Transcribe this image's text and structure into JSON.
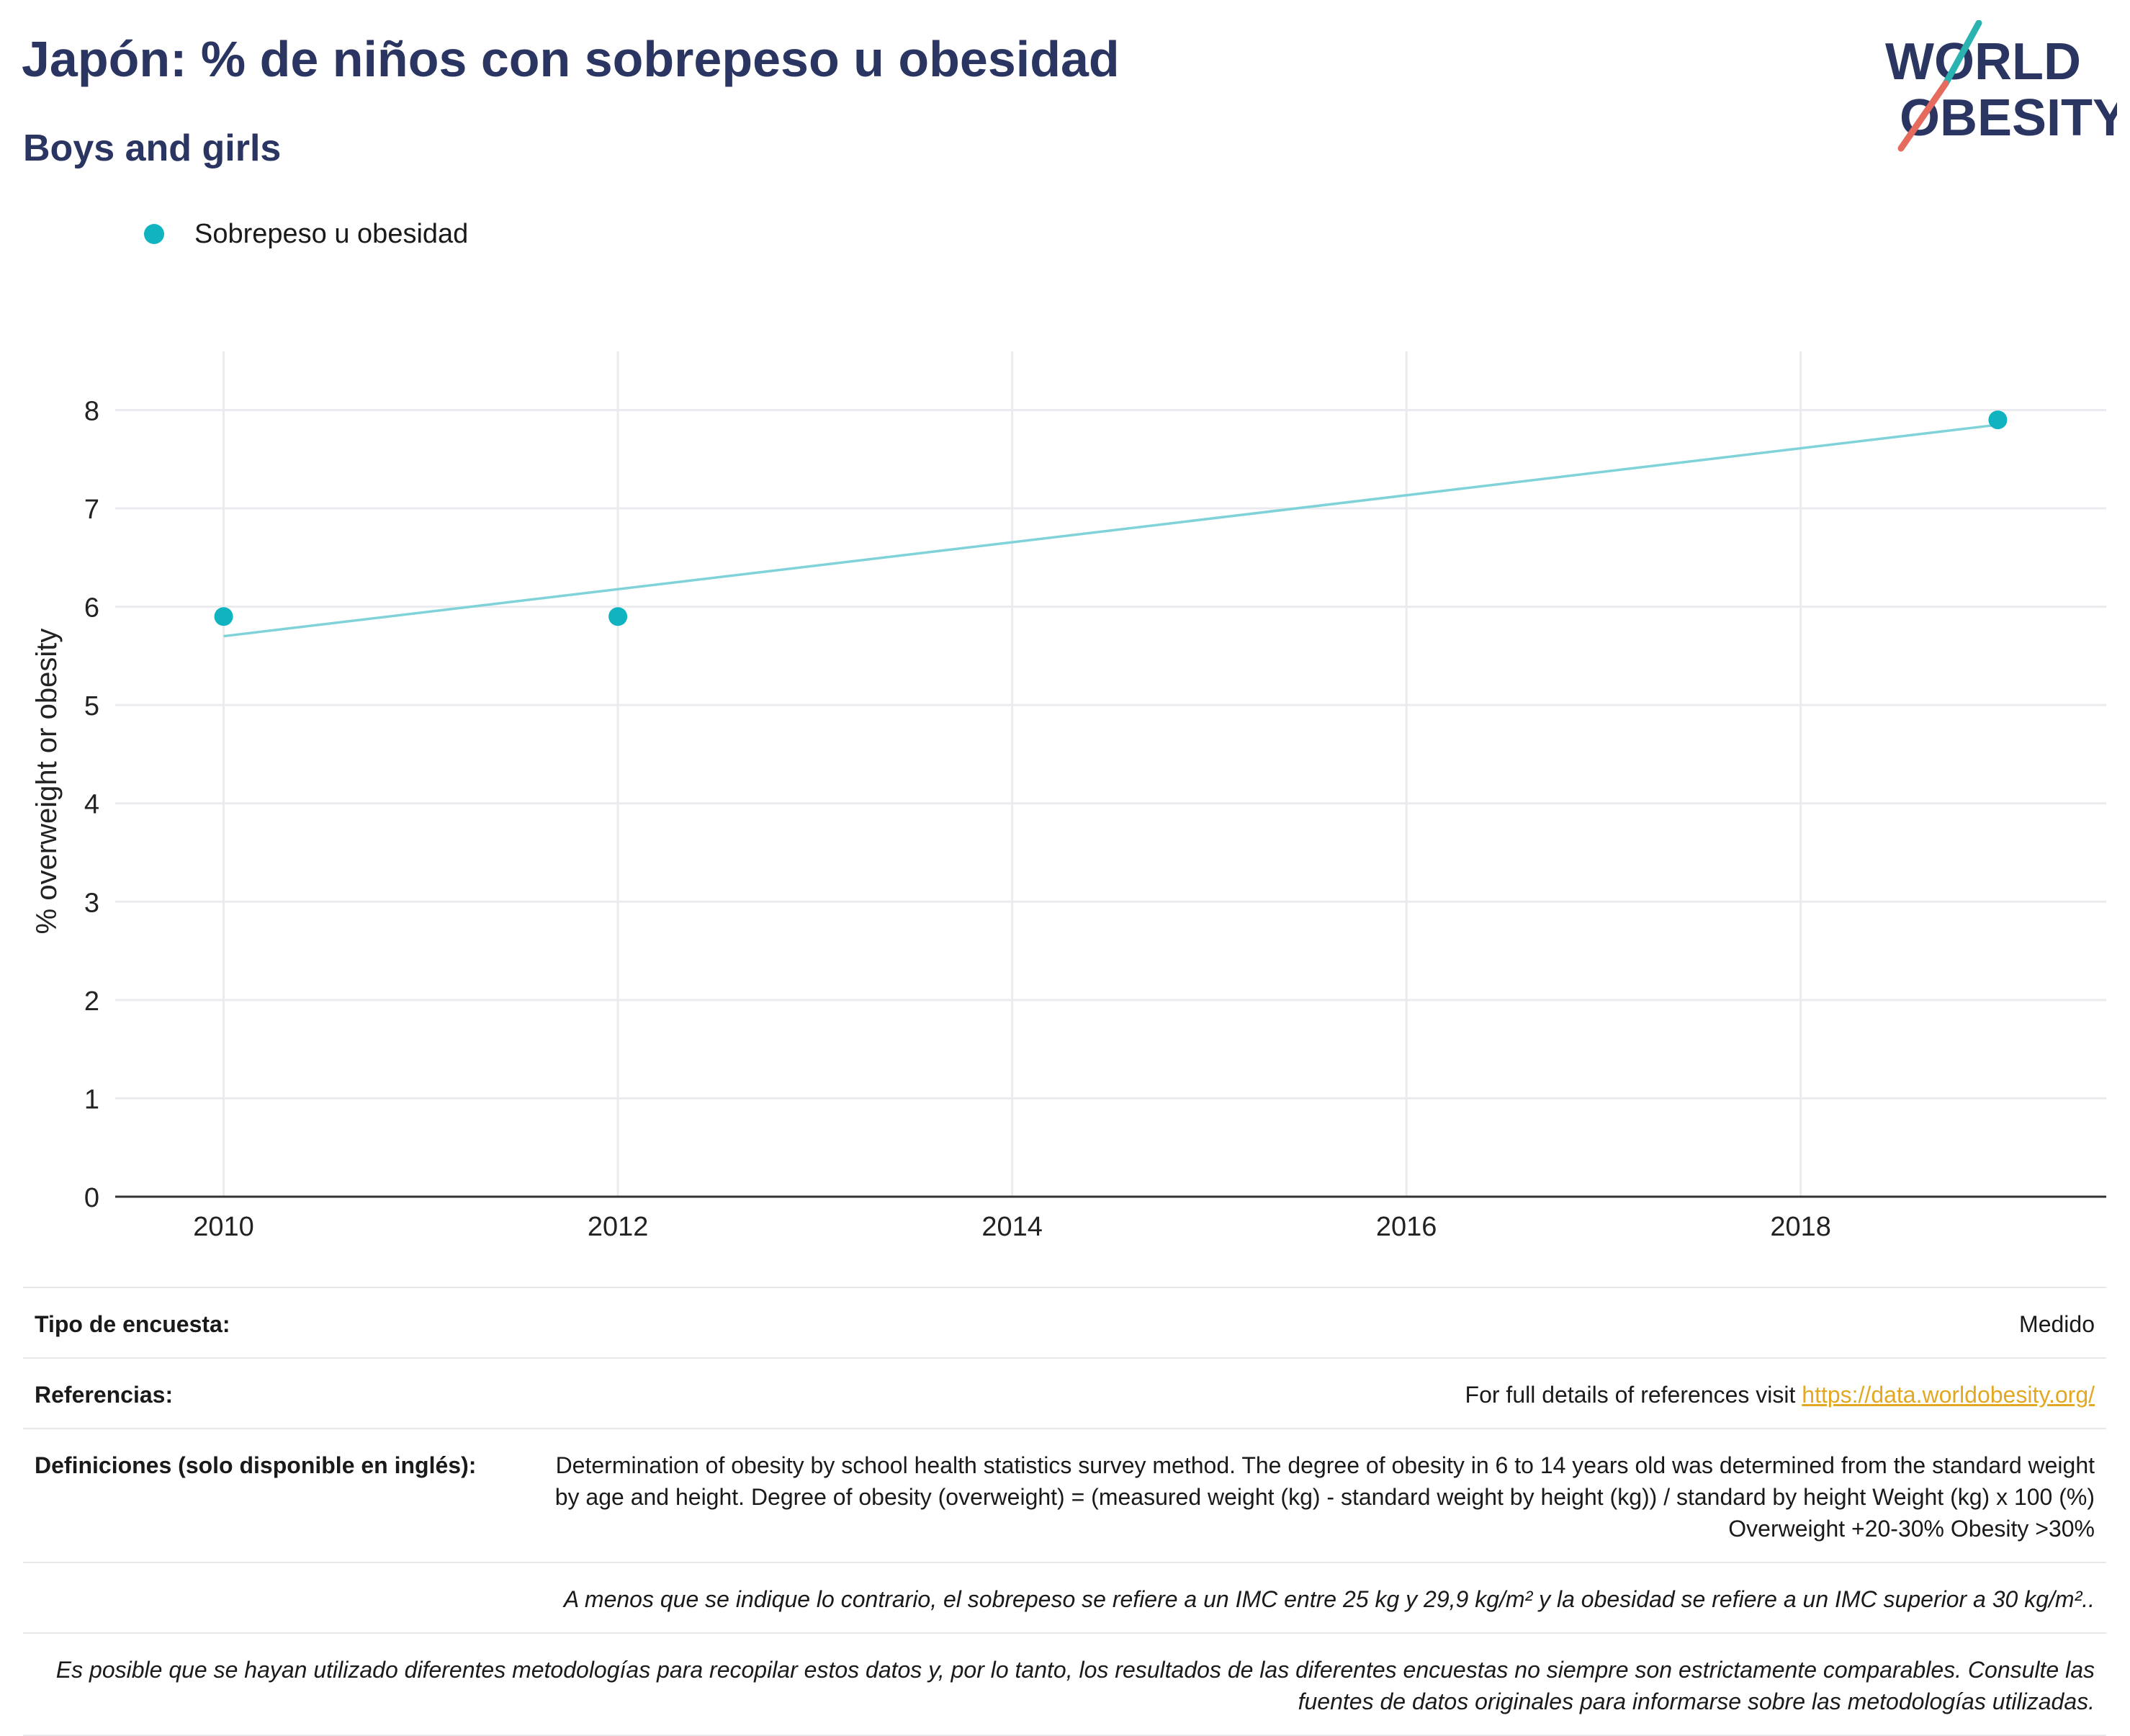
{
  "header": {
    "title": "Japón: % de niños con sobrepeso u obesidad",
    "subtitle": "Boys and girls"
  },
  "logo": {
    "line1": "WORLD",
    "line2": "OBESITY",
    "text_color": "#2a3561",
    "accent_teal": "#2bb3b1",
    "accent_red": "#e46b5d"
  },
  "legend": {
    "label": "Sobrepeso u obesidad",
    "color": "#10b4c1"
  },
  "chart_data": {
    "type": "scatter",
    "series": [
      {
        "name": "Sobrepeso u obesidad",
        "color": "#10b4c1",
        "x": [
          2010,
          2012,
          2019
        ],
        "y": [
          5.9,
          5.9,
          7.9
        ]
      }
    ],
    "trendline": {
      "color": "#7fd3d8",
      "x": [
        2010,
        2019
      ],
      "y": [
        5.7,
        7.85
      ]
    },
    "xlim": [
      2009.45,
      2019.55
    ],
    "ylim": [
      0,
      8.45
    ],
    "xticks": [
      2010,
      2012,
      2014,
      2016,
      2018
    ],
    "yticks": [
      0,
      1,
      2,
      3,
      4,
      5,
      6,
      7,
      8
    ],
    "xlabel": "",
    "ylabel": "% overweight or obesity",
    "grid": true
  },
  "info": {
    "survey_label": "Tipo de encuesta:",
    "survey_value": "Medido",
    "refs_label": "Referencias:",
    "refs_text": "For full details of references visit ",
    "refs_link": "https://data.worldobesity.org/",
    "defs_label": "Definiciones (solo disponible en inglés):",
    "defs_value": "Determination of obesity by school health statistics survey method. The degree of obesity in 6 to 14 years old was determined from the standard weight by age and height. Degree of obesity (overweight) = (measured weight (kg) - standard weight by height (kg)) / standard by height Weight (kg) x 100 (%) Overweight +20-30% Obesity >30%",
    "note_bmi": "A menos que se indique lo contrario, el sobrepeso se refiere a un IMC entre 25 kg y 29,9 kg/m² y la obesidad se refiere a un IMC superior a 30 kg/m²..",
    "note_methods": "Es posible que se hayan utilizado diferentes metodologías para recopilar estos datos y, por lo tanto, los resultados de las diferentes encuestas no siempre son estrictamente comparables. Consulte las fuentes de datos originales para informarse sobre las metodologías utilizadas."
  }
}
